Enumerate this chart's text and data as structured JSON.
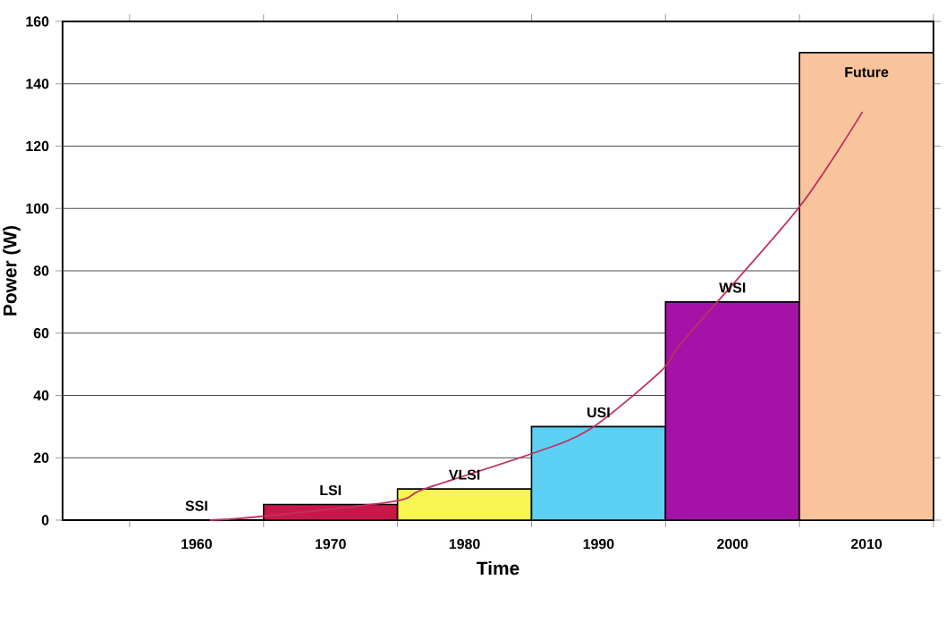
{
  "chart_data": {
    "type": "bar",
    "xlabel": "Time",
    "ylabel": "Power (W)",
    "x": [
      1960,
      1970,
      1980,
      1990,
      2000,
      2010
    ],
    "values": [
      0,
      5,
      10,
      30,
      70,
      150
    ],
    "colors": [
      "#ffffff",
      "#c8184a",
      "#f8f550",
      "#5cd0f2",
      "#a412a8",
      "#f9c49c"
    ],
    "series": [
      {
        "type": "line",
        "color": "#c03060",
        "x": [
          1961,
          1964.4,
          1974.7,
          1977,
          1984.8,
          1989.3,
          1994.7,
          1996.4,
          2004.9,
          2009.7
        ],
        "values": [
          0,
          1,
          6,
          10,
          21,
          29,
          48,
          58,
          100,
          131
        ]
      }
    ],
    "annotations": [
      {
        "text": "SSI",
        "x": 1960,
        "y": 0
      },
      {
        "text": "LSI",
        "x": 1970,
        "y": 5
      },
      {
        "text": "VLSI",
        "x": 1980,
        "y": 10
      },
      {
        "text": "USI",
        "x": 1990,
        "y": 30
      },
      {
        "text": "WSI",
        "x": 2000,
        "y": 70
      },
      {
        "text": "Future",
        "x": 2010,
        "y": 150
      }
    ],
    "xlim": [
      1950,
      2015
    ],
    "ylim": [
      0,
      160
    ],
    "xticks": [
      1960,
      1970,
      1980,
      1990,
      2000,
      2010
    ],
    "yticks": [
      0,
      20,
      40,
      60,
      80,
      100,
      120,
      140,
      160
    ],
    "grid": "y"
  }
}
